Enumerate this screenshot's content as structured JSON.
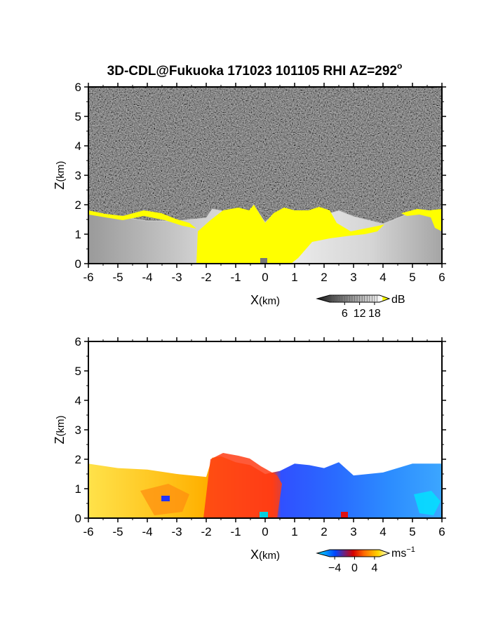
{
  "figure": {
    "title_main": "3D-CDL@Fukuoka 171023 101105 RHI AZ=292",
    "title_degree": "o"
  },
  "chart_data": [
    {
      "type": "heatmap",
      "name": "reflectivity",
      "xlabel_main": "X",
      "xlabel_unit": "(km)",
      "ylabel_main": "Z",
      "ylabel_unit": "(km)",
      "xlim": [
        -6,
        6
      ],
      "ylim": [
        0,
        6
      ],
      "xticks": [
        "-6",
        "-5",
        "-4",
        "-3",
        "-2",
        "-1",
        "0",
        "1",
        "2",
        "3",
        "4",
        "5",
        "6"
      ],
      "yticks": [
        "0",
        "1",
        "2",
        "3",
        "4",
        "5",
        "6"
      ],
      "background": "noise gray",
      "saturated_color": "#ffff00",
      "echo_top_km": [
        [
          -6,
          1.75
        ],
        [
          -5,
          1.6
        ],
        [
          -4,
          1.45
        ],
        [
          -3,
          1.45
        ],
        [
          -2,
          1.55
        ],
        [
          -1.8,
          1.85
        ],
        [
          -1.5,
          1.8
        ],
        [
          -1,
          1.6
        ],
        [
          -0.5,
          1.7
        ],
        [
          -0.4,
          2.0
        ],
        [
          0,
          1.4
        ],
        [
          0.3,
          1.7
        ],
        [
          0.6,
          1.8
        ],
        [
          1,
          1.7
        ],
        [
          1.5,
          1.6
        ],
        [
          2,
          1.65
        ],
        [
          2.5,
          1.8
        ],
        [
          3,
          1.6
        ],
        [
          4,
          1.35
        ],
        [
          5,
          1.75
        ],
        [
          6,
          1.8
        ]
      ],
      "colorbar": {
        "unit": "dB",
        "ticks": [
          "6",
          "12",
          "18"
        ],
        "range": [
          0,
          20
        ],
        "colors": [
          "#1a1a1a",
          "#ffffff",
          "#ffff00"
        ]
      }
    },
    {
      "type": "heatmap",
      "name": "doppler-velocity",
      "xlabel_main": "X",
      "xlabel_unit": "(km)",
      "ylabel_main": "Z",
      "ylabel_unit": "(km)",
      "xlim": [
        -6,
        6
      ],
      "ylim": [
        0,
        6
      ],
      "xticks": [
        "-6",
        "-5",
        "-4",
        "-3",
        "-2",
        "-1",
        "0",
        "1",
        "2",
        "3",
        "4",
        "5",
        "6"
      ],
      "yticks": [
        "0",
        "1",
        "2",
        "3",
        "4",
        "5",
        "6"
      ],
      "echo_top_km": [
        [
          -6,
          1.85
        ],
        [
          -5,
          1.7
        ],
        [
          -4,
          1.65
        ],
        [
          -3,
          1.5
        ],
        [
          -2,
          1.4
        ],
        [
          -1.8,
          2.05
        ],
        [
          -1.5,
          2.1
        ],
        [
          -1,
          1.9
        ],
        [
          -0.5,
          1.8
        ],
        [
          0,
          1.5
        ],
        [
          0.5,
          1.6
        ],
        [
          1,
          1.85
        ],
        [
          1.5,
          1.8
        ],
        [
          2,
          1.7
        ],
        [
          2.5,
          1.9
        ],
        [
          3,
          1.45
        ],
        [
          4,
          1.55
        ],
        [
          5,
          1.85
        ],
        [
          6,
          1.85
        ]
      ],
      "colorbar": {
        "unit_main": "ms",
        "unit_exp": "−1",
        "ticks": [
          "−4",
          "0",
          "4"
        ],
        "range": [
          -5,
          5
        ],
        "colors": [
          "#00e5ff",
          "#0044ff",
          "#d60000",
          "#ff6a00",
          "#ffd800",
          "#ffffff"
        ]
      }
    }
  ]
}
